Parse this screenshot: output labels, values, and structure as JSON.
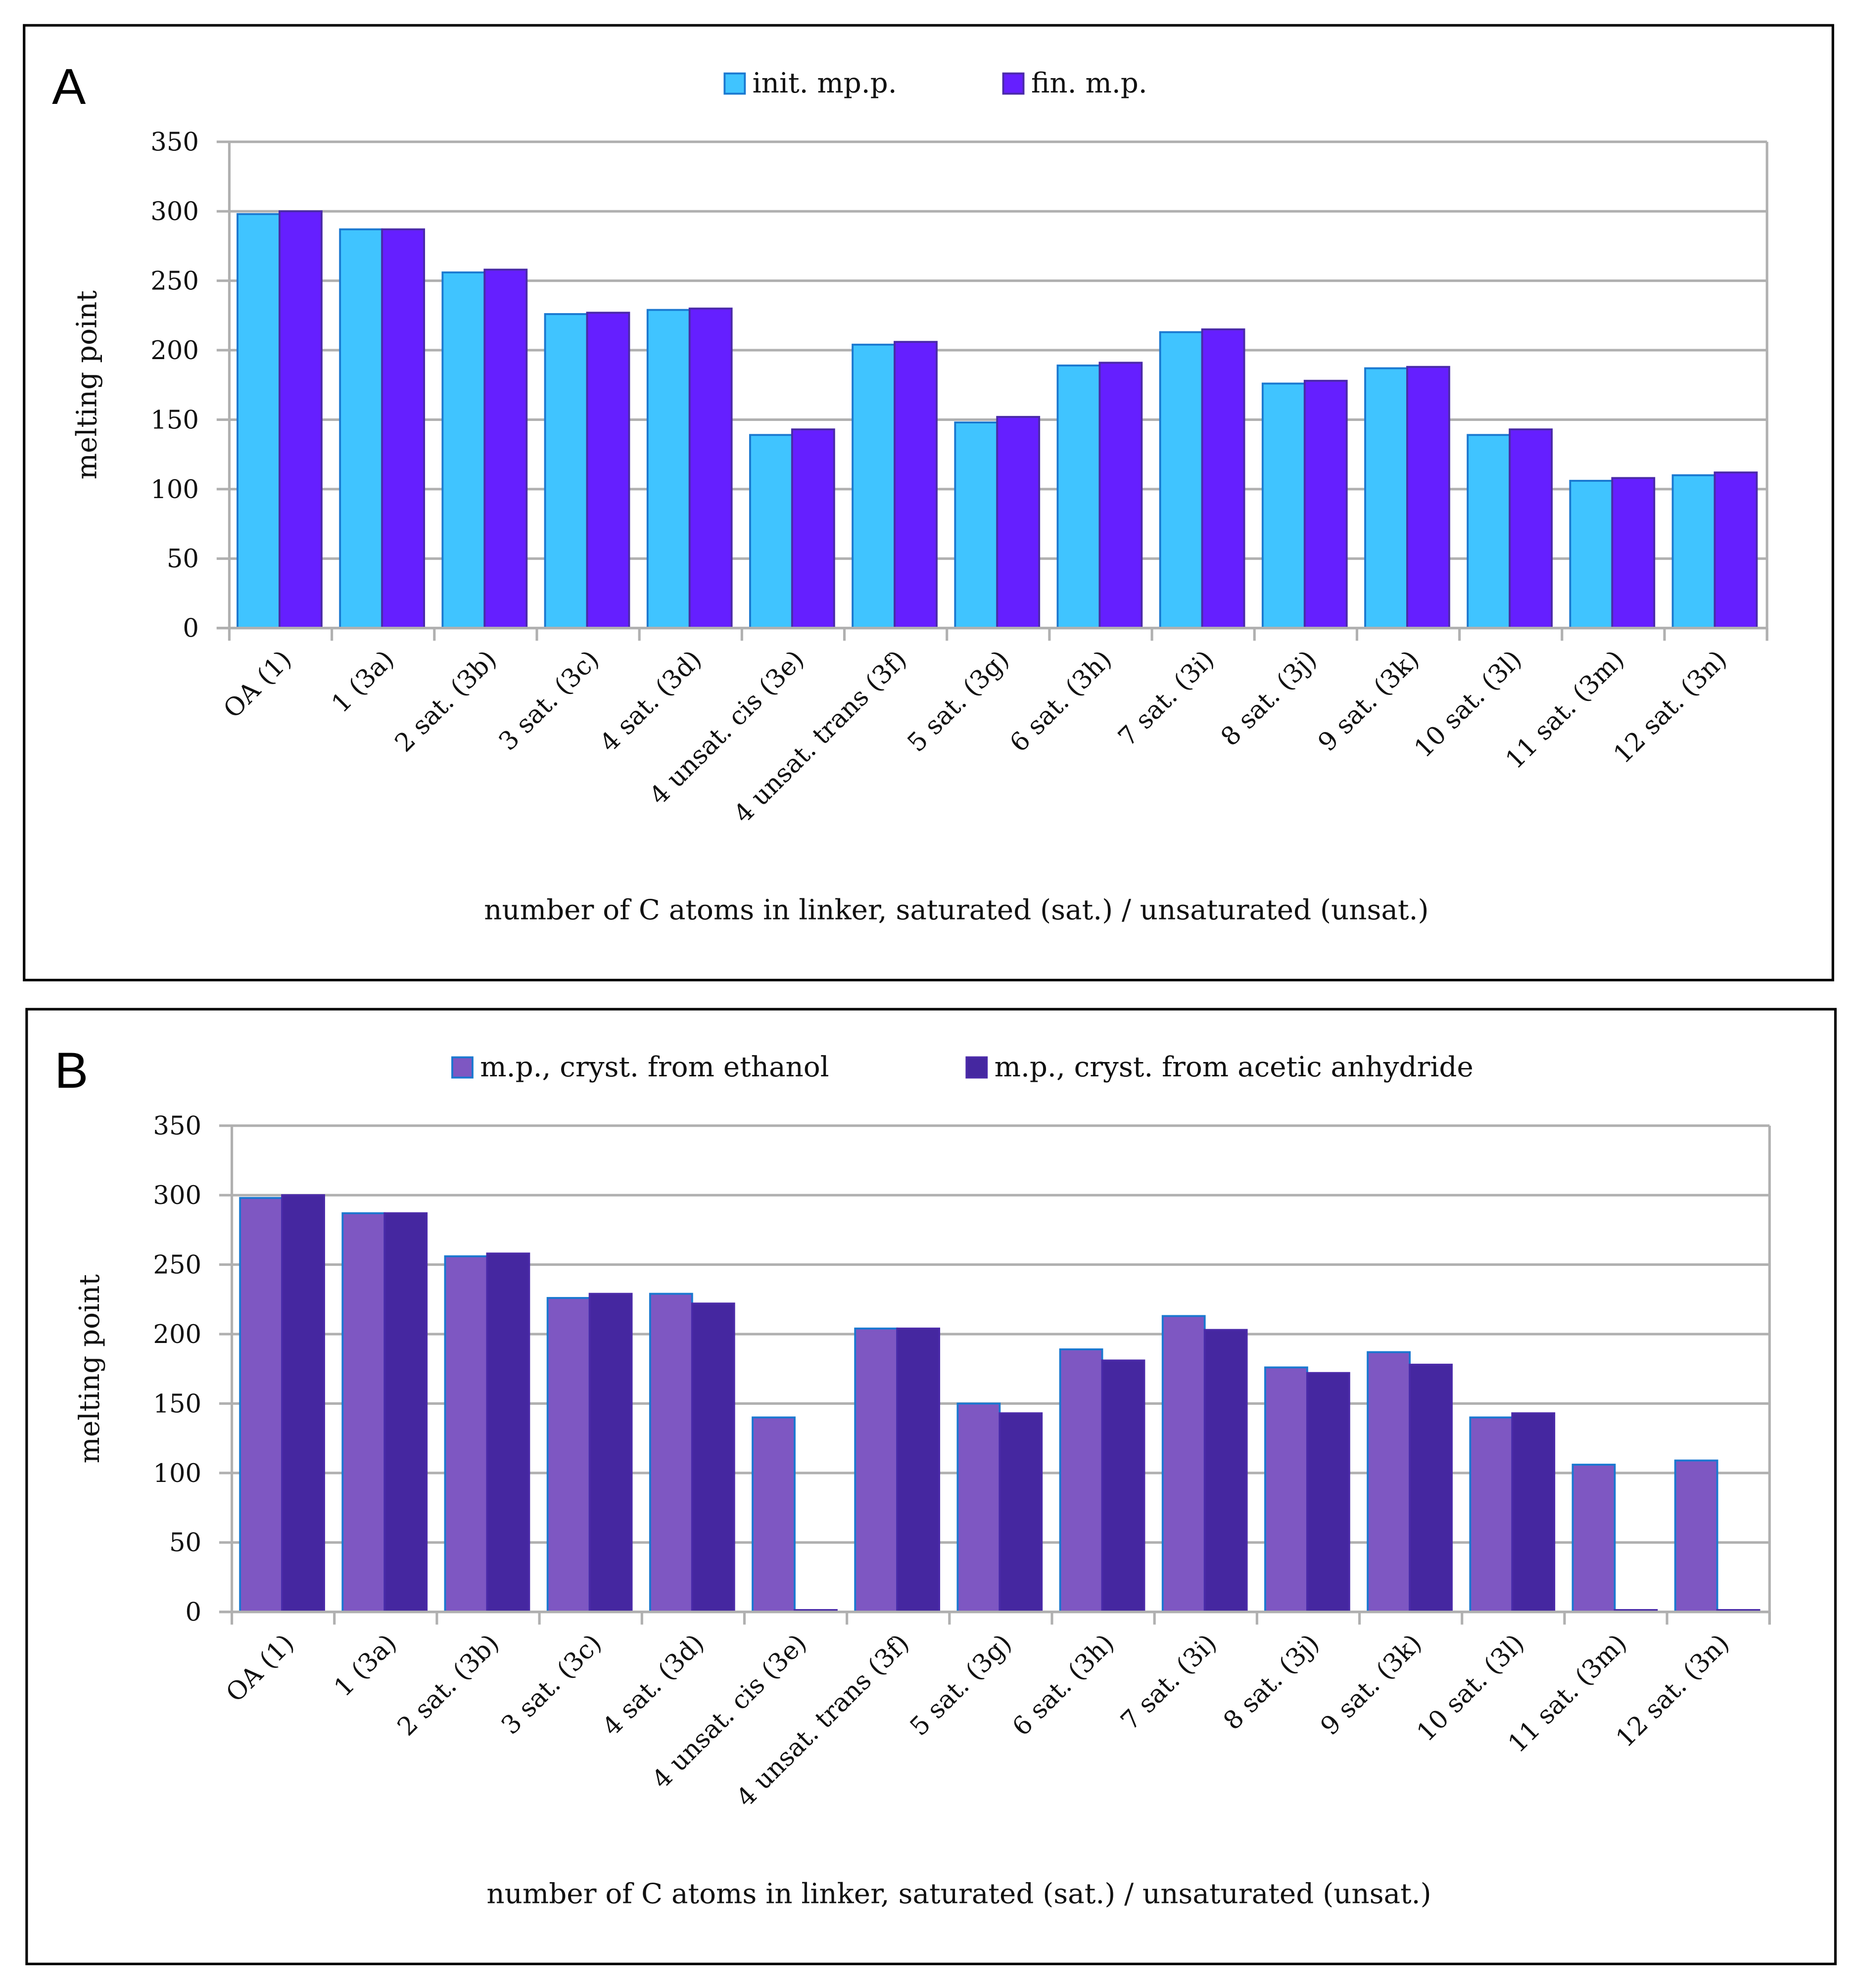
{
  "chart_data": [
    {
      "panel": "A",
      "type": "bar",
      "categories": [
        "OA (1)",
        "1 (3a)",
        "2 sat. (3b)",
        "3 sat. (3c)",
        "4 sat. (3d)",
        "4 unsat. cis (3e)",
        "4 unsat. trans (3f)",
        "5 sat. (3g)",
        "6 sat. (3h)",
        "7 sat. (3i)",
        "8 sat. (3j)",
        "9 sat. (3k)",
        "10 sat. (3l)",
        "11 sat. (3m)",
        "12 sat. (3n)"
      ],
      "series": [
        {
          "name": "init. mp.p.",
          "color": "#40C4FF",
          "values": [
            298,
            287,
            256,
            226,
            229,
            139,
            204,
            148,
            189,
            213,
            176,
            187,
            139,
            106,
            110
          ]
        },
        {
          "name": "fin. m.p.",
          "color": "#651FFF",
          "values": [
            300,
            287,
            258,
            227,
            230,
            143,
            206,
            152,
            191,
            215,
            178,
            188,
            143,
            108,
            112
          ]
        }
      ],
      "xlabel": "number of C atoms in linker, saturated (sat.) / unsaturated (unsat.)",
      "ylabel": "melting point",
      "ylim": [
        0,
        350
      ],
      "yticks": [
        0,
        50,
        100,
        150,
        200,
        250,
        300,
        350
      ],
      "legend": "top-center",
      "grid": true
    },
    {
      "panel": "B",
      "type": "bar",
      "categories": [
        "OA (1)",
        "1 (3a)",
        "2 sat. (3b)",
        "3 sat. (3c)",
        "4 sat. (3d)",
        "4 unsat. cis (3e)",
        "4 unsat. trans (3f)",
        "5 sat. (3g)",
        "6 sat. (3h)",
        "7 sat. (3i)",
        "8 sat. (3j)",
        "9 sat. (3k)",
        "10 sat. (3l)",
        "11 sat. (3m)",
        "12 sat. (3n)"
      ],
      "series": [
        {
          "name": "m.p., cryst. from ethanol",
          "color": "#7E57C2",
          "values": [
            298,
            287,
            256,
            226,
            229,
            140,
            204,
            150,
            189,
            213,
            176,
            187,
            140,
            106,
            109
          ]
        },
        {
          "name": "m.p., cryst. from acetic anhydride",
          "color": "#4527A0",
          "values": [
            300,
            287,
            258,
            229,
            222,
            0,
            204,
            143,
            181,
            203,
            172,
            178,
            143,
            0,
            0
          ]
        }
      ],
      "xlabel": "number of C atoms in linker, saturated (sat.) / unsaturated (unsat.)",
      "ylabel": "melting point",
      "ylim": [
        0,
        350
      ],
      "yticks": [
        0,
        50,
        100,
        150,
        200,
        250,
        300,
        350
      ],
      "legend": "top-center",
      "grid": true
    }
  ]
}
